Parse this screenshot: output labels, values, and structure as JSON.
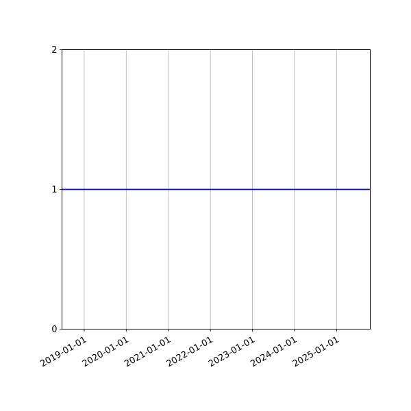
{
  "chart_data": {
    "type": "line",
    "title": "",
    "xlabel": "",
    "ylabel": "",
    "x_type": "date",
    "xlim": [
      "2018-06-22",
      "2025-10-20"
    ],
    "ylim": [
      0,
      2
    ],
    "x_ticks": [
      "2019-01-01",
      "2020-01-01",
      "2021-01-01",
      "2022-01-01",
      "2023-01-01",
      "2024-01-01",
      "2025-01-01"
    ],
    "y_ticks": [
      0,
      1,
      2
    ],
    "grid": {
      "x": true,
      "y": false
    },
    "series": [
      {
        "x": [
          "2018-06-22",
          "2025-10-20"
        ],
        "y": [
          1,
          1
        ],
        "color": "#0000ff"
      }
    ],
    "grid_color": "#b0b0b0"
  }
}
